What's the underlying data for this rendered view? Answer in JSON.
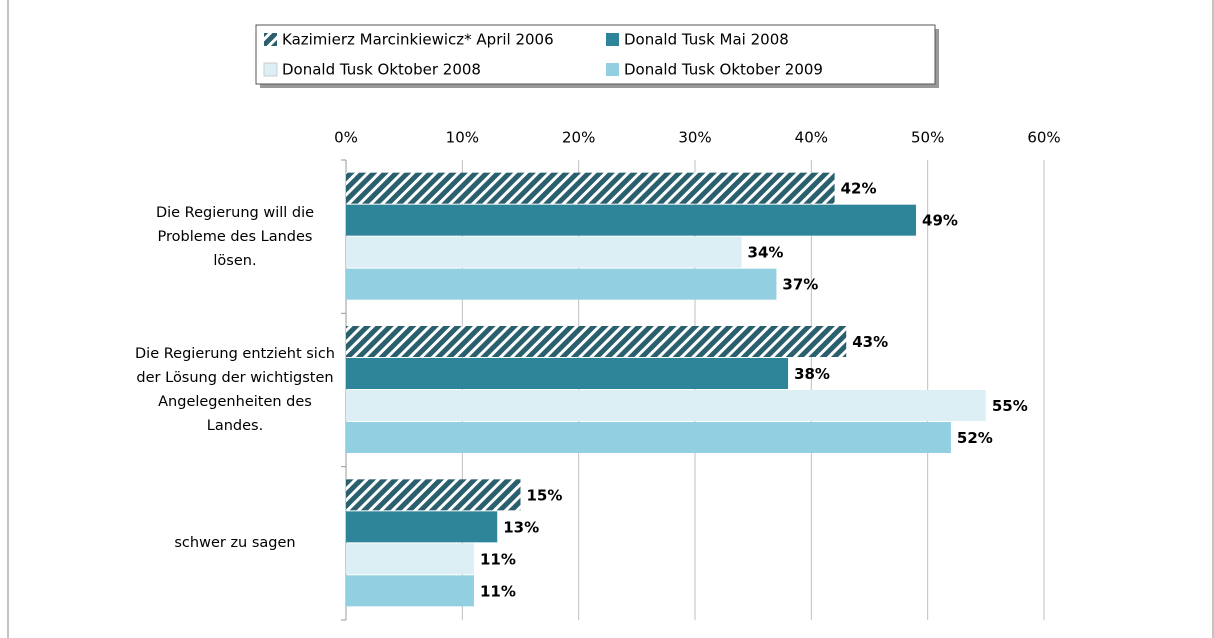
{
  "chart_data": {
    "type": "barh",
    "categories": [
      "Die Regierung will die Probleme des Landes lösen.",
      "Die Regierung entzieht sich der Lösung der wichtigsten Angelegenheiten des Landes.",
      "schwer zu sagen"
    ],
    "series": [
      {
        "name": "Kazimierz Marcinkiewicz* April 2006",
        "color": "#2a5f6e",
        "pattern": "diagonal-hatch",
        "values": [
          42,
          43,
          15
        ],
        "value_labels": [
          "42%",
          "43%",
          "15%"
        ]
      },
      {
        "name": "Donald Tusk Mai 2008",
        "color": "#2e8499",
        "values": [
          49,
          38,
          13
        ],
        "value_labels": [
          "49%",
          "38%",
          "13%"
        ]
      },
      {
        "name": "Donald Tusk Oktober 2008",
        "color": "#dceff4",
        "values": [
          34,
          55,
          11
        ],
        "value_labels": [
          "34%",
          "55%",
          "11%"
        ]
      },
      {
        "name": "Donald Tusk Oktober 2009",
        "color": "#92cfe0",
        "values": [
          37,
          52,
          11
        ],
        "value_labels": [
          "37%",
          "52%",
          "11%"
        ]
      }
    ],
    "xlim": [
      0,
      60
    ],
    "xticks": [
      {
        "value": 0,
        "label": "0%"
      },
      {
        "value": 10,
        "label": "10%"
      },
      {
        "value": 20,
        "label": "20%"
      },
      {
        "value": 30,
        "label": "30%"
      },
      {
        "value": 40,
        "label": "40%"
      },
      {
        "value": 50,
        "label": "50%"
      },
      {
        "value": 60,
        "label": "60%"
      }
    ],
    "grid": true,
    "legend": "top"
  }
}
